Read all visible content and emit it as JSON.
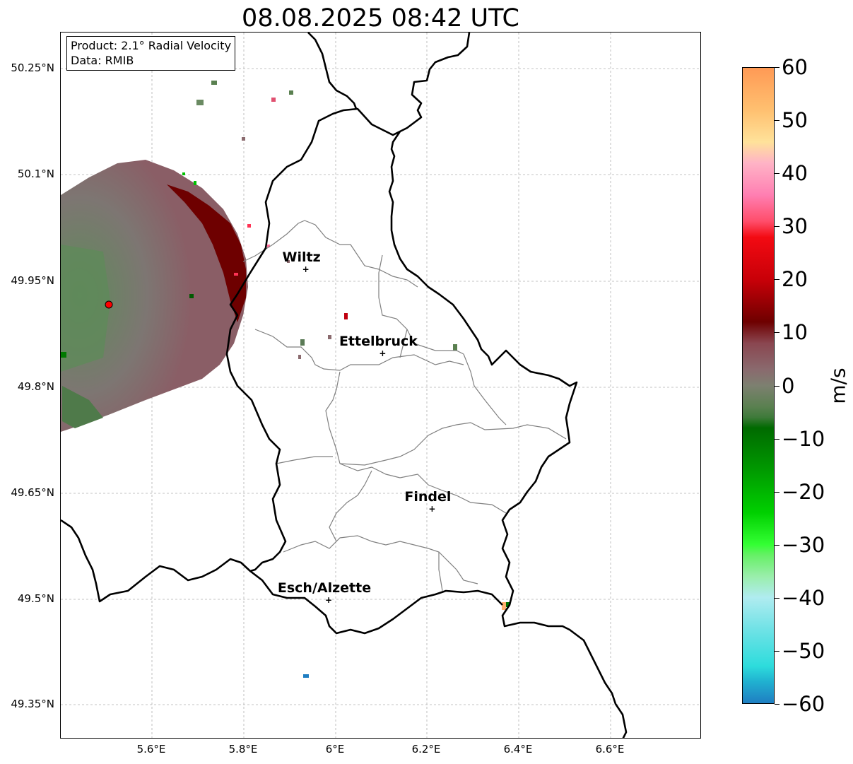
{
  "title": "08.08.2025 08:42 UTC",
  "info": {
    "product": "Product: 2.1° Radial Velocity",
    "data_source": "Data: RMIB"
  },
  "lat_labels": [
    "50.25°N",
    "50.1°N",
    "49.95°N",
    "49.8°N",
    "49.65°N",
    "49.5°N",
    "49.35°N"
  ],
  "lon_labels": [
    "5.6°E",
    "5.8°E",
    "6°E",
    "6.2°E",
    "6.4°E",
    "6.6°E"
  ],
  "cities": [
    {
      "name": "Wiltz",
      "lon": 5.935,
      "lat": 49.966
    },
    {
      "name": "Ettelbruck",
      "lon": 6.103,
      "lat": 49.847
    },
    {
      "name": "Findel",
      "lon": 6.211,
      "lat": 49.627
    },
    {
      "name": "Esch/Alzette",
      "lon": 5.985,
      "lat": 49.498
    }
  ],
  "radar_site": {
    "lon": 5.505,
    "lat": 49.915
  },
  "map_extent": {
    "lon_min": 5.4,
    "lon_max": 6.8,
    "lat_min": 49.3,
    "lat_max": 50.3
  },
  "colorbar": {
    "unit": "m/s",
    "min": -60,
    "max": 60,
    "tick_labels": [
      "60",
      "50",
      "40",
      "30",
      "20",
      "10",
      "0",
      "−10",
      "−20",
      "−30",
      "−40",
      "−50",
      "−60"
    ],
    "stops": [
      {
        "v": 60,
        "c": "#ff9a55"
      },
      {
        "v": 52,
        "c": "#ffc070"
      },
      {
        "v": 46,
        "c": "#ffe29a"
      },
      {
        "v": 42,
        "c": "#ffb3c6"
      },
      {
        "v": 36,
        "c": "#ff7fb2"
      },
      {
        "v": 31,
        "c": "#ff4d6a"
      },
      {
        "v": 28,
        "c": "#f30a12"
      },
      {
        "v": 20,
        "c": "#c80008"
      },
      {
        "v": 12,
        "c": "#6e0000"
      },
      {
        "v": 8,
        "c": "#8a4650"
      },
      {
        "v": 3,
        "c": "#8a6a6e"
      },
      {
        "v": 0,
        "c": "#7d8070"
      },
      {
        "v": -4,
        "c": "#5a8050"
      },
      {
        "v": -6,
        "c": "#3e7a3a"
      },
      {
        "v": -8,
        "c": "#006a00"
      },
      {
        "v": -16,
        "c": "#009a00"
      },
      {
        "v": -24,
        "c": "#00d000"
      },
      {
        "v": -30,
        "c": "#33ff33"
      },
      {
        "v": -32,
        "c": "#66f066"
      },
      {
        "v": -36,
        "c": "#99eeaa"
      },
      {
        "v": -40,
        "c": "#b0ecf0"
      },
      {
        "v": -46,
        "c": "#70e2e6"
      },
      {
        "v": -53,
        "c": "#2ddcdc"
      },
      {
        "v": -56,
        "c": "#20b0d0"
      },
      {
        "v": -60,
        "c": "#1f7ec2"
      }
    ]
  }
}
